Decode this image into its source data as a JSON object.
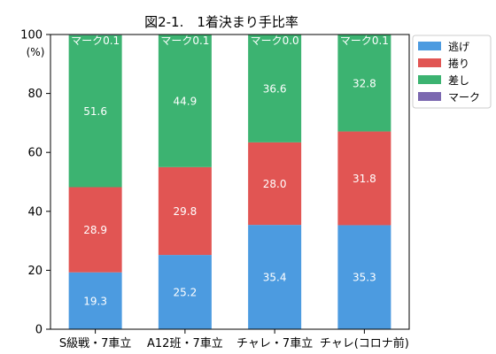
{
  "chart_data": {
    "type": "bar",
    "stacked": true,
    "title": "図2-1.　1着決まり手比率",
    "ylabel_unit": "(%)",
    "ylim": [
      0,
      100
    ],
    "yticks": [
      0,
      20,
      40,
      60,
      80,
      100
    ],
    "categories": [
      "S級戦・7車立",
      "A12班・7車立",
      "チャレ・7車立",
      "チャレ(コロナ前)"
    ],
    "series": [
      {
        "name": "逃げ",
        "color": "#4C9BE0",
        "values": [
          19.3,
          25.2,
          35.4,
          35.3
        ],
        "labels": [
          "19.3",
          "25.2",
          "35.4",
          "35.3"
        ]
      },
      {
        "name": "捲り",
        "color": "#E15553",
        "values": [
          28.9,
          29.8,
          28.0,
          31.8
        ],
        "labels": [
          "28.9",
          "29.8",
          "28.0",
          "31.8"
        ]
      },
      {
        "name": "差し",
        "color": "#3CB371",
        "values": [
          51.6,
          44.9,
          36.6,
          32.8
        ],
        "labels": [
          "51.6",
          "44.9",
          "36.6",
          "32.8"
        ]
      },
      {
        "name": "マーク",
        "color": "#7B68B0",
        "values": [
          0.1,
          0.1,
          0.0,
          0.1
        ],
        "labels": [
          "マーク0.1",
          "マーク0.1",
          "マーク0.0",
          "マーク0.1"
        ]
      }
    ],
    "legend_position": "outside-top-right",
    "grid": false
  }
}
